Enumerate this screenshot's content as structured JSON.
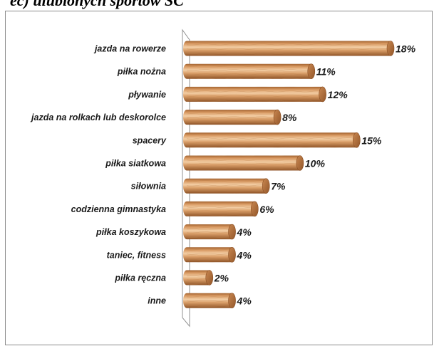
{
  "header": {
    "text": "ec) ulubionych sportów SC"
  },
  "chart_data": {
    "type": "bar",
    "orientation": "horizontal",
    "categories": [
      "jazda na rowerze",
      "piłka nożna",
      "pływanie",
      "jazda na rolkach lub deskorolce",
      "spacery",
      "piłka siatkowa",
      "siłownia",
      "codzienna gimnastyka",
      "piłka koszykowa",
      "taniec, fitness",
      "piłka ręczna",
      "inne"
    ],
    "values": [
      18,
      11,
      12,
      8,
      15,
      10,
      7,
      6,
      4,
      4,
      2,
      4
    ],
    "value_labels": [
      "18%",
      "11%",
      "12%",
      "8%",
      "15%",
      "10%",
      "7%",
      "6%",
      "4%",
      "4%",
      "2%",
      "4%"
    ],
    "xlim": [
      0,
      18
    ],
    "grid": false,
    "legend": "none",
    "colors": {
      "bar_base": "#d08a52",
      "bar_light": "#f0c8a0",
      "bar_dark": "#9a5c2e",
      "cap": "#b8733e",
      "wall": "#909090"
    }
  }
}
